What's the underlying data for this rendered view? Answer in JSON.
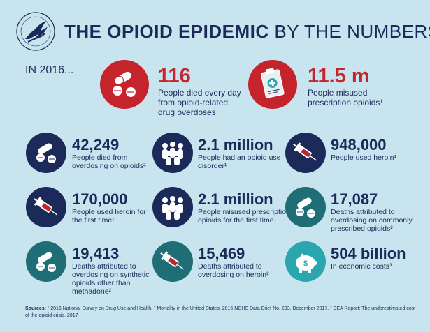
{
  "header": {
    "title_bold": "THE OPIOID EPIDEMIC",
    "title_rest": "BY THE NUMBERS",
    "year_label": "IN 2016..."
  },
  "colors": {
    "background": "#c8e4ef",
    "navy": "#1b2a59",
    "red": "#c5242c",
    "teal": "#1f6e76",
    "light_teal": "#2aa7ae"
  },
  "highlights": [
    {
      "icon": "pills-icon",
      "value": "116",
      "desc": [
        "People died every day",
        "from opioid-related",
        "drug overdoses"
      ]
    },
    {
      "icon": "prescription-clipboard-icon",
      "value": "11.5 m",
      "desc": [
        "People misused",
        "prescription opioids¹"
      ]
    }
  ],
  "stats": [
    {
      "icon": "pills-icon",
      "value": "42,249",
      "desc": [
        "People died from",
        "overdosing on opioids²"
      ]
    },
    {
      "icon": "people-group-icon",
      "value": "2.1 million",
      "desc": [
        "People had an opioid use",
        "disorder¹"
      ]
    },
    {
      "icon": "syringe-icon",
      "value": "948,000",
      "desc": [
        "People used heroin¹"
      ]
    },
    {
      "icon": "syringe-icon",
      "value": "170,000",
      "desc": [
        "People used heroin for",
        "the first time¹"
      ]
    },
    {
      "icon": "people-group-icon",
      "value": "2.1 million",
      "desc": [
        "People misused prescription",
        "opioids for the first time¹"
      ]
    },
    {
      "icon": "pills-icon",
      "value": "17,087",
      "desc": [
        "Deaths attributed to",
        "overdosing on commonly",
        "prescribed opioids²"
      ]
    },
    {
      "icon": "pills-icon",
      "value": "19,413",
      "desc": [
        "Deaths attributed to",
        "overdosing on synthetic",
        "opioids other than",
        "methadone²"
      ]
    },
    {
      "icon": "syringe-icon",
      "value": "15,469",
      "desc": [
        "Deaths attributed to",
        "overdosing on heroin²"
      ]
    },
    {
      "icon": "piggy-bank-icon",
      "value": "504 billion",
      "desc": [
        "In economic costs³"
      ]
    }
  ],
  "sources": {
    "label": "Sources:",
    "text": " ¹ 2016 National Survey on Drug Use and Health, ² Mortality in the United States, 2016 NCHS Data Brief No. 293, December 2017, ³ CEA Report: The underestimated cost of the opioid crisis, 2017"
  }
}
